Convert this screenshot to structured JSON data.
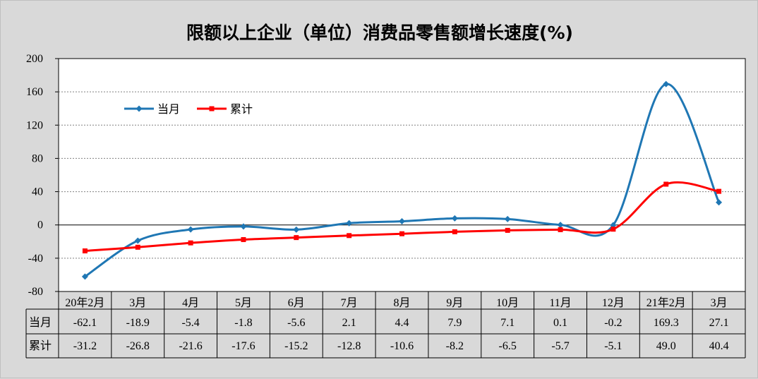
{
  "chart_data": {
    "type": "line",
    "title": "限额以上企业（单位）消费品零售额增长速度(%)",
    "categories": [
      "20年2月",
      "3月",
      "4月",
      "5月",
      "6月",
      "7月",
      "8月",
      "9月",
      "10月",
      "11月",
      "12月",
      "21年2月",
      "3月"
    ],
    "series": [
      {
        "name": "当月",
        "color": "#1f77b4",
        "marker": "diamond",
        "values": [
          -62.1,
          -18.9,
          -5.4,
          -1.8,
          -5.6,
          2.1,
          4.4,
          7.9,
          7.1,
          0.1,
          -0.2,
          169.3,
          27.1
        ],
        "labels": [
          "-62.1",
          "-18.9",
          "-5.4",
          "-1.8",
          "-5.6",
          "2.1",
          "4.4",
          "7.9",
          "7.1",
          "0.1",
          "-0.2",
          "169.3",
          "27.1"
        ]
      },
      {
        "name": "累计",
        "color": "#ff0000",
        "marker": "square",
        "values": [
          -31.2,
          -26.8,
          -21.6,
          -17.6,
          -15.2,
          -12.8,
          -10.6,
          -8.2,
          -6.5,
          -5.7,
          -5.1,
          49.0,
          40.4
        ],
        "labels": [
          "-31.2",
          "-26.8",
          "-21.6",
          "-17.6",
          "-15.2",
          "-12.8",
          "-10.6",
          "-8.2",
          "-6.5",
          "-5.7",
          "-5.1",
          "49.0",
          "40.4"
        ]
      }
    ],
    "ylim": [
      -80,
      200
    ],
    "yticks": [
      "200",
      "160",
      "120",
      "80",
      "40",
      "0",
      "-40",
      "-80"
    ],
    "grid": true,
    "legend": "top-left",
    "data_table": true
  }
}
